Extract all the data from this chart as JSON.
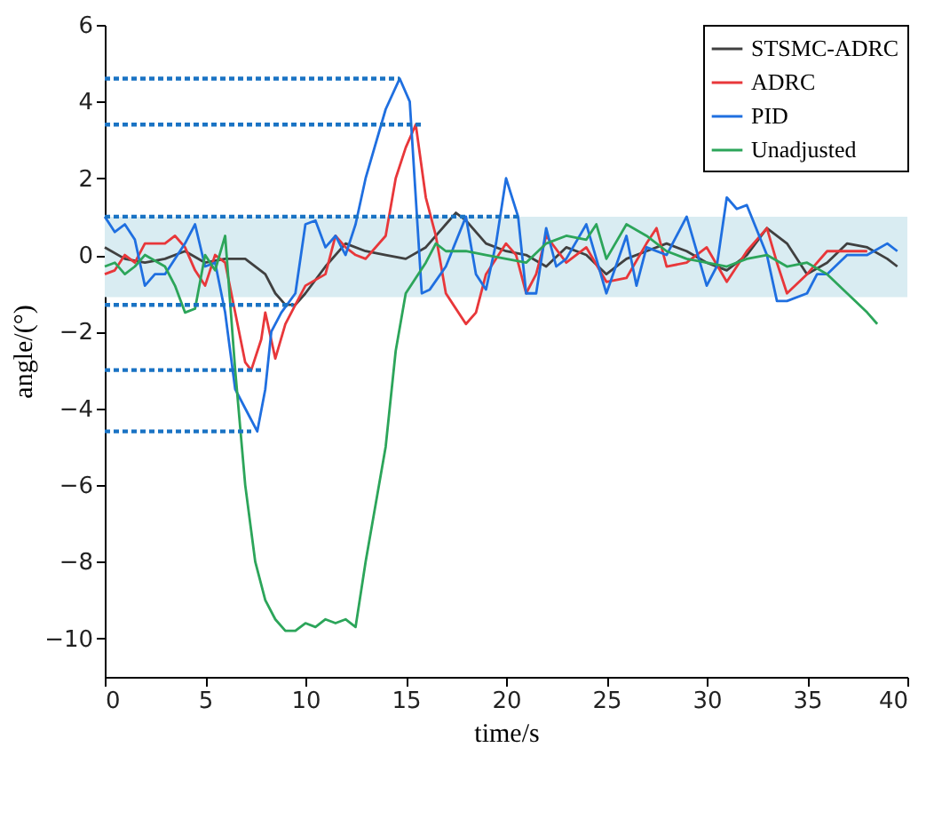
{
  "chart_data": {
    "type": "line",
    "xlabel": "time/s",
    "ylabel": "angle/(°)",
    "xlim": [
      0,
      40
    ],
    "xticks": [
      0,
      5,
      10,
      15,
      20,
      25,
      30,
      35,
      40
    ],
    "ylim": [
      -11,
      6
    ],
    "yticks": [
      -10,
      -8,
      -6,
      -4,
      -2,
      0,
      2,
      4,
      6
    ],
    "grid": false,
    "legend": "top right",
    "line_style": "solid",
    "marker": "none",
    "bands": [
      {
        "axis": "y",
        "from": -1.1,
        "to": 1.0,
        "color": "#d9ecf2"
      }
    ],
    "series": [
      {
        "name": "STSMC-ADRC",
        "color": "#404040",
        "x": [
          0,
          1,
          2,
          3,
          4,
          5,
          6,
          7,
          8,
          8.5,
          9,
          9.5,
          10,
          11,
          12,
          13,
          14,
          15,
          16,
          17,
          17.5,
          18,
          19,
          20,
          21,
          22,
          23,
          24,
          25,
          26,
          27,
          28,
          29,
          30,
          31,
          32,
          33,
          34,
          35,
          36,
          37,
          38,
          39,
          39.5
        ],
        "values": [
          0.2,
          -0.1,
          -0.2,
          -0.1,
          0.1,
          -0.2,
          -0.1,
          -0.1,
          -0.5,
          -1.0,
          -1.3,
          -1.3,
          -1.0,
          -0.3,
          0.3,
          0.1,
          0,
          -0.1,
          0.2,
          0.8,
          1.1,
          0.9,
          0.3,
          0.1,
          0,
          -0.3,
          0.2,
          0,
          -0.5,
          -0.1,
          0.1,
          0.3,
          0.1,
          -0.2,
          -0.4,
          0,
          0.7,
          0.3,
          -0.5,
          -0.2,
          0.3,
          0.2,
          -0.1,
          -0.3
        ]
      },
      {
        "name": "ADRC",
        "color": "#e8373a",
        "x": [
          0,
          0.5,
          1,
          1.5,
          2,
          3,
          3.5,
          4,
          4.5,
          5,
          5.5,
          6,
          6.5,
          7,
          7.3,
          7.8,
          8,
          8.5,
          9,
          9.5,
          10,
          11,
          11.5,
          12,
          12.5,
          13,
          14,
          14.5,
          15,
          15.5,
          16,
          16.5,
          17,
          18,
          18.5,
          19,
          20,
          20.5,
          21,
          21.5,
          22,
          23,
          24,
          25,
          26,
          27,
          27.5,
          28,
          29,
          30,
          31,
          32,
          33,
          33.5,
          34,
          35,
          36,
          37,
          38
        ],
        "values": [
          -0.5,
          -0.4,
          0,
          -0.2,
          0.3,
          0.3,
          0.5,
          0.2,
          -0.4,
          -0.8,
          0,
          -0.2,
          -1.5,
          -2.8,
          -3.0,
          -2.2,
          -1.5,
          -2.7,
          -1.8,
          -1.3,
          -0.8,
          -0.5,
          0.5,
          0.2,
          0,
          -0.1,
          0.5,
          2.0,
          2.8,
          3.4,
          1.5,
          0.5,
          -1.0,
          -1.8,
          -1.5,
          -0.5,
          0.3,
          0,
          -1.0,
          -0.5,
          0.5,
          -0.2,
          0.2,
          -0.7,
          -0.6,
          0.3,
          0.7,
          -0.3,
          -0.2,
          0.2,
          -0.7,
          0.1,
          0.7,
          -0.2,
          -1.0,
          -0.5,
          0.1,
          0.1,
          0.1
        ]
      },
      {
        "name": "PID",
        "color": "#1f6fe0",
        "x": [
          0,
          0.5,
          1,
          1.5,
          2,
          2.5,
          3,
          4,
          4.5,
          5,
          5.5,
          6,
          6.5,
          7,
          7.6,
          8,
          8.3,
          8.8,
          9.5,
          10,
          10.5,
          11,
          11.5,
          12,
          12.5,
          13,
          14,
          14.7,
          15.2,
          15.8,
          16.2,
          17,
          18,
          18.5,
          19,
          19.5,
          20,
          20.6,
          21,
          21.5,
          22,
          22.5,
          23,
          24,
          24.5,
          25,
          26,
          26.5,
          27,
          28,
          29,
          30,
          30.5,
          31,
          31.5,
          32,
          33,
          33.5,
          34,
          35,
          35.5,
          36,
          37,
          38,
          39,
          39.5
        ],
        "values": [
          1.0,
          0.6,
          0.8,
          0.4,
          -0.8,
          -0.5,
          -0.5,
          0.3,
          0.8,
          -0.3,
          -0.2,
          -1.5,
          -3.5,
          -4.0,
          -4.6,
          -3.5,
          -2.0,
          -1.5,
          -1.0,
          0.8,
          0.9,
          0.2,
          0.5,
          0,
          0.8,
          2.0,
          3.8,
          4.6,
          4.0,
          -1.0,
          -0.9,
          -0.3,
          1.0,
          -0.5,
          -0.9,
          0.3,
          2.0,
          1.0,
          -1.0,
          -1.0,
          0.7,
          -0.3,
          -0.1,
          0.8,
          -0.1,
          -1.0,
          0.5,
          -0.8,
          0.2,
          0,
          1.0,
          -0.8,
          -0.3,
          1.5,
          1.2,
          1.3,
          0,
          -1.2,
          -1.2,
          -1.0,
          -0.5,
          -0.5,
          0,
          0,
          0.3,
          0.1
        ]
      },
      {
        "name": "Unadjusted",
        "color": "#2ca55a",
        "x": [
          0,
          0.5,
          1,
          1.5,
          2,
          3,
          3.5,
          4,
          4.5,
          5,
          5.5,
          6,
          6.5,
          7,
          7.5,
          8,
          8.5,
          9,
          9.5,
          10,
          10.5,
          11,
          11.5,
          12,
          12.5,
          13,
          14,
          14.5,
          15,
          15.5,
          16,
          16.5,
          17,
          18,
          19,
          20,
          21,
          22,
          23,
          24,
          24.5,
          25,
          26,
          27,
          28,
          29,
          30,
          31,
          32,
          33,
          34,
          35,
          36,
          37,
          38,
          38.5
        ],
        "values": [
          -0.3,
          -0.2,
          -0.5,
          -0.3,
          0,
          -0.3,
          -0.8,
          -1.5,
          -1.4,
          0,
          -0.4,
          0.5,
          -3.0,
          -6.0,
          -8.0,
          -9.0,
          -9.5,
          -9.8,
          -9.8,
          -9.6,
          -9.7,
          -9.5,
          -9.6,
          -9.5,
          -9.7,
          -8.0,
          -5.0,
          -2.5,
          -1.0,
          -0.6,
          -0.2,
          0.3,
          0.1,
          0.1,
          0,
          -0.1,
          -0.2,
          0.3,
          0.5,
          0.4,
          0.8,
          -0.1,
          0.8,
          0.5,
          0.1,
          -0.1,
          -0.2,
          -0.3,
          -0.1,
          0,
          -0.3,
          -0.2,
          -0.5,
          -1.0,
          -1.5,
          -1.8
        ]
      },
      {
        "type": "line",
        "line_style": "dotted",
        "color": "#1a73c4",
        "x": [
          0,
          14.7
        ],
        "values": [
          4.6,
          4.6
        ]
      },
      {
        "type": "line",
        "line_style": "dotted",
        "color": "#1a73c4",
        "x": [
          0,
          15.8
        ],
        "values": [
          3.4,
          3.4
        ]
      },
      {
        "type": "line",
        "line_style": "dotted",
        "color": "#1a73c4",
        "x": [
          0,
          20.7
        ],
        "values": [
          1.0,
          1.0
        ]
      },
      {
        "type": "line",
        "line_style": "dotted",
        "color": "#1a73c4",
        "x": [
          0,
          9.4
        ],
        "values": [
          -1.3,
          -1.3
        ]
      },
      {
        "type": "line",
        "line_style": "dotted",
        "color": "#1a73c4",
        "x": [
          0,
          7.9
        ],
        "values": [
          -3.0,
          -3.0
        ]
      },
      {
        "type": "line",
        "line_style": "dotted",
        "color": "#1a73c4",
        "x": [
          0,
          7.3
        ],
        "values": [
          -4.6,
          -4.6
        ]
      }
    ]
  }
}
